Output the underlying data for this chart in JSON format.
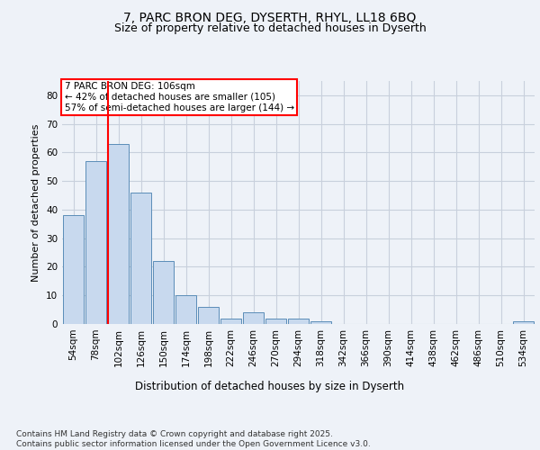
{
  "title1": "7, PARC BRON DEG, DYSERTH, RHYL, LL18 6BQ",
  "title2": "Size of property relative to detached houses in Dyserth",
  "xlabel": "Distribution of detached houses by size in Dyserth",
  "ylabel": "Number of detached properties",
  "categories": [
    "54sqm",
    "78sqm",
    "102sqm",
    "126sqm",
    "150sqm",
    "174sqm",
    "198sqm",
    "222sqm",
    "246sqm",
    "270sqm",
    "294sqm",
    "318sqm",
    "342sqm",
    "366sqm",
    "390sqm",
    "414sqm",
    "438sqm",
    "462sqm",
    "486sqm",
    "510sqm",
    "534sqm"
  ],
  "values": [
    38,
    57,
    63,
    46,
    22,
    10,
    6,
    2,
    4,
    2,
    2,
    1,
    0,
    0,
    0,
    0,
    0,
    0,
    0,
    0,
    1
  ],
  "bar_color": "#c8d9ee",
  "bar_edge_color": "#5b8db8",
  "vline_index": 2,
  "annotation_text": "7 PARC BRON DEG: 106sqm\n← 42% of detached houses are smaller (105)\n57% of semi-detached houses are larger (144) →",
  "annotation_box_color": "white",
  "annotation_box_edge_color": "red",
  "vline_color": "red",
  "ylim": [
    0,
    85
  ],
  "yticks": [
    0,
    10,
    20,
    30,
    40,
    50,
    60,
    70,
    80
  ],
  "footer": "Contains HM Land Registry data © Crown copyright and database right 2025.\nContains public sector information licensed under the Open Government Licence v3.0.",
  "bg_color": "#eef2f8",
  "grid_color": "#c8d0dc",
  "title1_fontsize": 10,
  "title2_fontsize": 9,
  "xlabel_fontsize": 8.5,
  "ylabel_fontsize": 8,
  "tick_fontsize": 7.5,
  "annotation_fontsize": 7.5,
  "footer_fontsize": 6.5
}
